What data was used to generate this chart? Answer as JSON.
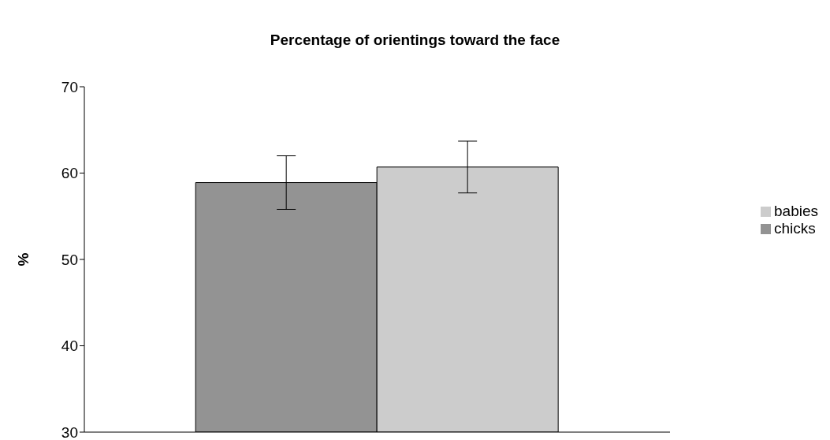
{
  "chart_data": {
    "type": "bar",
    "title": "Percentage of orientings toward the face",
    "ylabel": "%",
    "categories": [
      null
    ],
    "series": [
      {
        "name": "chicks",
        "color": "#939393",
        "values": [
          58.9
        ],
        "errors": [
          3.1
        ]
      },
      {
        "name": "babies",
        "color": "#cccccc",
        "values": [
          60.7
        ],
        "errors": [
          3.0
        ]
      }
    ],
    "ylim": [
      30,
      70
    ],
    "yticks": [
      30,
      40,
      50,
      60,
      70
    ],
    "grid": false,
    "legend": "right"
  }
}
